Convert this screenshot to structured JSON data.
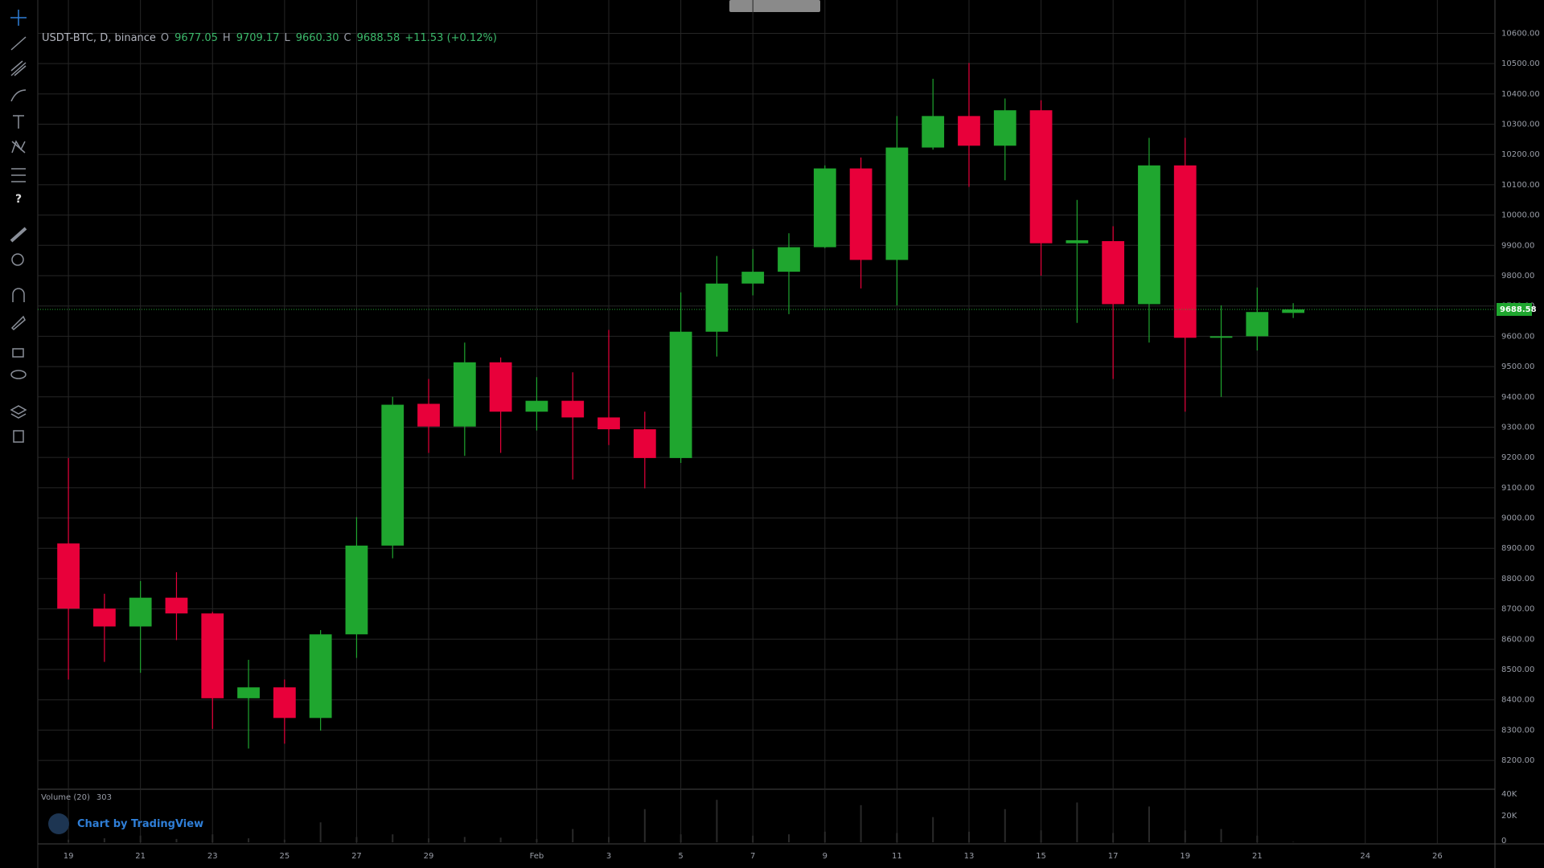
{
  "chart_data": [
    {
      "type": "candlestick",
      "title": "USDT-BTC, D, binance",
      "header": [
        {
          "prefix": "O",
          "value": "9677.05"
        },
        {
          "prefix": "H",
          "value": "9709.17"
        },
        {
          "prefix": "L",
          "value": "9660.30"
        },
        {
          "prefix": "C",
          "value": "9688.58"
        }
      ],
      "change": "+11.53 (+0.12%)",
      "x": [
        0,
        1,
        2,
        3,
        4,
        5,
        6,
        7,
        8,
        9,
        10,
        11,
        12,
        13,
        14,
        15,
        16,
        17,
        18,
        19,
        20,
        21,
        22,
        23,
        24,
        25,
        26,
        27,
        28,
        29,
        30,
        31,
        32,
        33,
        34
      ],
      "open": [
        8916,
        8701,
        8642,
        8737,
        8685,
        8405,
        8441,
        8340,
        8616,
        8909,
        9377,
        9302,
        9514,
        9351,
        9387,
        9332,
        9293,
        9198,
        9615,
        9774,
        9813,
        9894,
        10154,
        9852,
        10223,
        10327,
        10229,
        10346,
        9907,
        9914,
        9706,
        10164,
        9595,
        9600,
        9677.05
      ],
      "high": [
        9198,
        8750,
        8792,
        8821,
        8690,
        8532,
        8467,
        8630,
        9003,
        9400,
        9459,
        9579,
        9530,
        9465,
        9481,
        9621,
        9351,
        9745,
        9865,
        9888,
        9940,
        10164,
        10190,
        10327,
        10450,
        10502,
        10385,
        10379,
        10050,
        9963,
        10255,
        10255,
        9702,
        9761,
        9709.17
      ],
      "low": [
        8467,
        8525,
        8489,
        8597,
        8304,
        8239,
        8255,
        8298,
        8538,
        8867,
        9215,
        9205,
        9215,
        9289,
        9127,
        9241,
        9098,
        9182,
        9533,
        9735,
        9673,
        9891,
        9758,
        9702,
        10216,
        10093,
        10115,
        9800,
        9644,
        9459,
        9579,
        9351,
        9400,
        9553,
        9660.3
      ],
      "close": [
        8701,
        8642,
        8737,
        8685,
        8405,
        8441,
        8340,
        8616,
        8909,
        9374,
        9302,
        9514,
        9351,
        9387,
        9332,
        9293,
        9198,
        9615,
        9774,
        9813,
        9894,
        10154,
        9852,
        10223,
        10327,
        10229,
        10346,
        9907,
        9917,
        9706,
        10164,
        9595,
        9600,
        9680,
        9688.58
      ],
      "up_color": "#1fa62f",
      "down_color": "#e8003a",
      "last_price": 9688.58,
      "xlim": [
        -0.85,
        39.6
      ],
      "xticks": [
        {
          "value": 0,
          "label": "19"
        },
        {
          "value": 2,
          "label": "21"
        },
        {
          "value": 4,
          "label": "23"
        },
        {
          "value": 6,
          "label": "25"
        },
        {
          "value": 8,
          "label": "27"
        },
        {
          "value": 10,
          "label": "29"
        },
        {
          "value": 13,
          "label": "Feb"
        },
        {
          "value": 15,
          "label": "3"
        },
        {
          "value": 17,
          "label": "5"
        },
        {
          "value": 19,
          "label": "7"
        },
        {
          "value": 21,
          "label": "9"
        },
        {
          "value": 23,
          "label": "11"
        },
        {
          "value": 25,
          "label": "13"
        },
        {
          "value": 27,
          "label": "15"
        },
        {
          "value": 29,
          "label": "17"
        },
        {
          "value": 31,
          "label": "19"
        },
        {
          "value": 33,
          "label": "21"
        },
        {
          "value": 36,
          "label": "24"
        },
        {
          "value": 38,
          "label": "26"
        }
      ],
      "ylim": [
        8110,
        10710
      ],
      "yticks": [
        {
          "value": 8200,
          "label": "8200.00"
        },
        {
          "value": 8300,
          "label": "8300.00"
        },
        {
          "value": 8400,
          "label": "8400.00"
        },
        {
          "value": 8500,
          "label": "8500.00"
        },
        {
          "value": 8600,
          "label": "8600.00"
        },
        {
          "value": 8700,
          "label": "8700.00"
        },
        {
          "value": 8800,
          "label": "8800.00"
        },
        {
          "value": 8900,
          "label": "8900.00"
        },
        {
          "value": 9000,
          "label": "9000.00"
        },
        {
          "value": 9100,
          "label": "9100.00"
        },
        {
          "value": 9200,
          "label": "9200.00"
        },
        {
          "value": 9300,
          "label": "9300.00"
        },
        {
          "value": 9400,
          "label": "9400.00"
        },
        {
          "value": 9500,
          "label": "9500.00"
        },
        {
          "value": 9600,
          "label": "9600.00"
        },
        {
          "value": 9700,
          "label": "9700.00"
        },
        {
          "value": 9800,
          "label": "9800.00"
        },
        {
          "value": 9900,
          "label": "9900.00"
        },
        {
          "value": 10000,
          "label": "10000.00"
        },
        {
          "value": 10100,
          "label": "10100.00"
        },
        {
          "value": 10200,
          "label": "10200.00"
        },
        {
          "value": 10300,
          "label": "10300.00"
        },
        {
          "value": 10400,
          "label": "10400.00"
        },
        {
          "value": 10500,
          "label": "10500.00"
        },
        {
          "value": 10600,
          "label": "10600.00"
        }
      ],
      "grid": true
    },
    {
      "type": "bar",
      "title": "Volume (20)",
      "color": "#2a2a2a",
      "values": [
        2000,
        3000,
        5000,
        2500,
        6000,
        3000,
        2000,
        15000,
        4000,
        6000,
        3000,
        4000,
        3500,
        2500,
        10000,
        4000,
        25000,
        6000,
        32000,
        5000,
        6000,
        8000,
        28000,
        7000,
        19000,
        8000,
        25000,
        9000,
        30000,
        7000,
        27000,
        9000,
        10000,
        5000,
        303
      ],
      "ylim": [
        0,
        40000
      ],
      "yticks": [
        0,
        {
          "value": 20000,
          "label": "20K"
        },
        {
          "value": 40000,
          "label": "40K"
        }
      ]
    }
  ]
}
